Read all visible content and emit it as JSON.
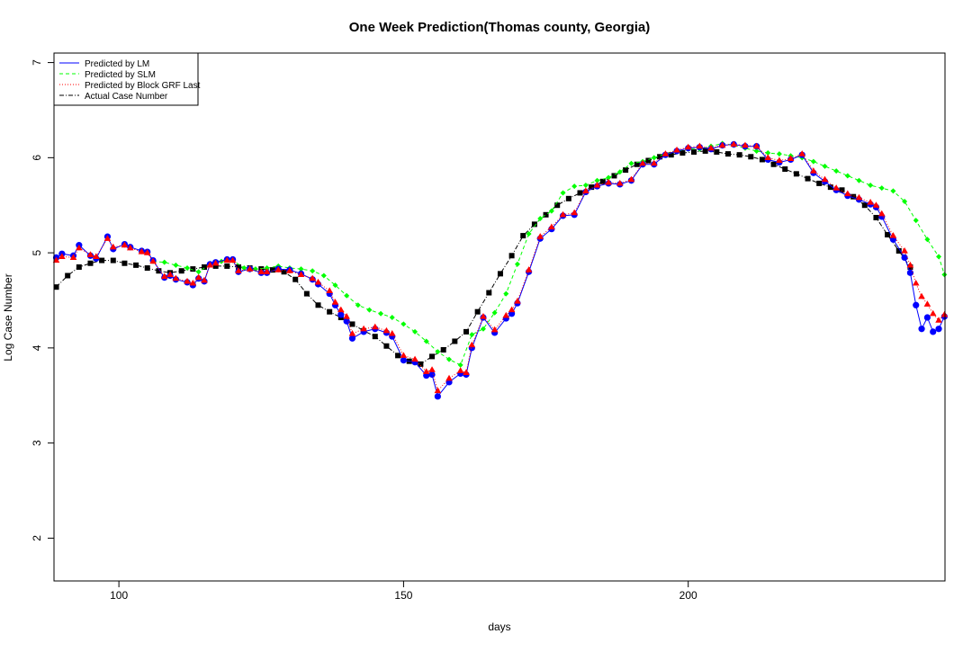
{
  "chart_data": {
    "type": "line",
    "title": "One Week Prediction(Thomas county, Georgia)",
    "xlabel": "days",
    "ylabel": "Log Case Number",
    "xlim": [
      88.6,
      245.1
    ],
    "ylim": [
      1.55,
      7.1
    ],
    "xticks": [
      100,
      150,
      200
    ],
    "yticks": [
      2,
      3,
      4,
      5,
      6,
      7
    ],
    "grid": false,
    "legend_position": "top-left",
    "legend": [
      {
        "label": "Predicted by LM",
        "color": "#0000ff",
        "style": "solid"
      },
      {
        "label": "Predicted by SLM",
        "color": "#00ff00",
        "style": "dashed"
      },
      {
        "label": "Predicted by Block GRF Last",
        "color": "#ff0000",
        "style": "dotted"
      },
      {
        "label": "Actual Case Number",
        "color": "#000000",
        "style": "dotdash"
      }
    ],
    "series": [
      {
        "name": "Actual Case Number",
        "color": "#000000",
        "marker": "square",
        "x": [
          89,
          91,
          93,
          95,
          97,
          99,
          101,
          103,
          105,
          107,
          109,
          111,
          113,
          115,
          117,
          119,
          121,
          123,
          125,
          127,
          129,
          131,
          133,
          135,
          137,
          139,
          141,
          143,
          145,
          147,
          149,
          151,
          153,
          155,
          157,
          159,
          161,
          163,
          165,
          167,
          169,
          171,
          173,
          175,
          177,
          179,
          181,
          183,
          185,
          187,
          189,
          191,
          193,
          195,
          197,
          199,
          201,
          203,
          205,
          207,
          209,
          211,
          213,
          215,
          217,
          219,
          221,
          223,
          225,
          227,
          229,
          231,
          233,
          235,
          237,
          239,
          241,
          243,
          245
        ],
        "y": [
          4.64,
          4.76,
          4.85,
          4.89,
          4.92,
          4.92,
          4.89,
          4.87,
          4.84,
          4.81,
          4.79,
          4.81,
          4.83,
          4.85,
          4.86,
          4.86,
          4.85,
          4.84,
          4.83,
          4.82,
          4.8,
          4.72,
          4.57,
          4.45,
          4.38,
          4.32,
          4.25,
          4.18,
          4.12,
          4.02,
          3.92,
          3.86,
          3.83,
          3.91,
          3.98,
          4.07,
          4.17,
          4.38,
          4.58,
          4.78,
          4.97,
          5.18,
          5.3,
          5.4,
          5.5,
          5.57,
          5.63,
          5.69,
          5.75,
          5.81,
          5.87,
          5.93,
          5.97,
          6.01,
          6.03,
          6.05,
          6.06,
          6.07,
          6.06,
          6.04,
          6.03,
          6.01,
          5.98,
          5.93,
          5.88,
          5.83,
          5.78,
          5.73,
          5.69,
          5.66,
          5.59,
          5.5,
          5.37,
          5.19,
          5.02,
          4.85,
          null,
          null,
          null
        ]
      },
      {
        "name": "Predicted by SLM",
        "color": "#00ff00",
        "marker": "diamond",
        "x": [
          106,
          108,
          110,
          112,
          114,
          116,
          118,
          120,
          122,
          124,
          126,
          128,
          130,
          132,
          134,
          136,
          138,
          140,
          142,
          144,
          146,
          148,
          150,
          152,
          154,
          156,
          158,
          160,
          162,
          164,
          166,
          168,
          170,
          172,
          174,
          176,
          178,
          180,
          182,
          184,
          186,
          188,
          190,
          192,
          194,
          196,
          198,
          200,
          202,
          204,
          206,
          208,
          210,
          212,
          214,
          216,
          218,
          220,
          222,
          224,
          226,
          228,
          230,
          232,
          234,
          236,
          238,
          240,
          242,
          244,
          245
        ],
        "y": [
          4.91,
          4.9,
          4.87,
          4.84,
          4.8,
          4.88,
          4.91,
          4.92,
          4.84,
          4.83,
          4.84,
          4.86,
          4.84,
          4.83,
          4.81,
          4.76,
          4.66,
          4.55,
          4.45,
          4.4,
          4.36,
          4.32,
          4.25,
          4.17,
          4.07,
          3.96,
          3.88,
          3.82,
          4.14,
          4.2,
          4.37,
          4.57,
          4.88,
          5.2,
          5.36,
          5.44,
          5.63,
          5.7,
          5.71,
          5.76,
          5.79,
          5.85,
          5.94,
          5.96,
          6.0,
          6.04,
          6.07,
          6.09,
          6.09,
          6.12,
          6.15,
          6.13,
          6.1,
          6.07,
          6.05,
          6.04,
          6.02,
          6.0,
          5.96,
          5.91,
          5.86,
          5.81,
          5.76,
          5.71,
          5.68,
          5.65,
          5.54,
          5.34,
          5.14,
          4.96,
          4.77
        ]
      },
      {
        "name": "Predicted by LM",
        "color": "#0000ff",
        "marker": "circle",
        "x": [
          89,
          90,
          92,
          93,
          95,
          96,
          98,
          99,
          101,
          102,
          104,
          105,
          106,
          108,
          109,
          110,
          112,
          113,
          114,
          115,
          116,
          117,
          119,
          120,
          121,
          123,
          125,
          126,
          128,
          130,
          132,
          134,
          135,
          137,
          138,
          139,
          140,
          141,
          143,
          145,
          147,
          148,
          150,
          152,
          154,
          155,
          156,
          158,
          160,
          161,
          162,
          164,
          166,
          168,
          169,
          170,
          172,
          174,
          176,
          178,
          180,
          182,
          184,
          186,
          188,
          190,
          192,
          194,
          196,
          198,
          200,
          202,
          204,
          206,
          208,
          210,
          212,
          214,
          216,
          218,
          220,
          222,
          224,
          226,
          228,
          230,
          232,
          233,
          234,
          236,
          238,
          239,
          240,
          241,
          242,
          243,
          244,
          245
        ],
        "y": [
          4.95,
          4.99,
          4.97,
          5.08,
          4.97,
          4.94,
          5.17,
          5.04,
          5.09,
          5.06,
          5.02,
          5.01,
          4.92,
          4.74,
          4.76,
          4.72,
          4.69,
          4.66,
          4.73,
          4.7,
          4.88,
          4.9,
          4.93,
          4.93,
          4.8,
          4.83,
          4.79,
          4.79,
          4.83,
          4.82,
          4.78,
          4.72,
          4.67,
          4.57,
          4.45,
          4.35,
          4.28,
          4.1,
          4.17,
          4.2,
          4.16,
          4.12,
          3.87,
          3.85,
          3.71,
          3.72,
          3.49,
          3.64,
          3.73,
          3.72,
          4.0,
          4.32,
          4.16,
          4.31,
          4.36,
          4.47,
          4.8,
          5.15,
          5.25,
          5.39,
          5.4,
          5.64,
          5.7,
          5.73,
          5.72,
          5.76,
          5.93,
          5.93,
          6.03,
          6.07,
          6.1,
          6.11,
          6.09,
          6.13,
          6.14,
          6.12,
          6.12,
          5.98,
          5.95,
          5.98,
          6.03,
          5.84,
          5.75,
          5.66,
          5.6,
          5.56,
          5.51,
          5.48,
          5.38,
          5.14,
          4.95,
          4.79,
          4.45,
          4.2,
          4.32,
          4.17,
          4.2,
          4.33
        ]
      },
      {
        "name": "Predicted by Block GRF Last",
        "color": "#ff0000",
        "marker": "triangle",
        "x": [
          89,
          90,
          92,
          93,
          95,
          96,
          98,
          99,
          101,
          102,
          104,
          105,
          106,
          108,
          109,
          110,
          112,
          113,
          114,
          115,
          116,
          117,
          119,
          120,
          121,
          123,
          125,
          126,
          128,
          130,
          132,
          134,
          135,
          137,
          138,
          139,
          140,
          141,
          143,
          145,
          147,
          148,
          150,
          152,
          154,
          155,
          156,
          158,
          160,
          161,
          162,
          164,
          166,
          168,
          169,
          170,
          172,
          174,
          176,
          178,
          180,
          182,
          184,
          186,
          188,
          190,
          192,
          194,
          196,
          198,
          200,
          202,
          204,
          206,
          208,
          210,
          212,
          214,
          216,
          218,
          220,
          222,
          224,
          226,
          228,
          230,
          232,
          233,
          234,
          236,
          238,
          239,
          240,
          241,
          242,
          243,
          244,
          245
        ],
        "y": [
          4.92,
          4.96,
          4.95,
          5.05,
          4.98,
          4.96,
          5.15,
          5.06,
          5.08,
          5.05,
          5.01,
          5.0,
          4.91,
          4.75,
          4.77,
          4.73,
          4.7,
          4.68,
          4.74,
          4.71,
          4.87,
          4.89,
          4.92,
          4.92,
          4.81,
          4.83,
          4.8,
          4.8,
          4.82,
          4.81,
          4.77,
          4.73,
          4.69,
          4.6,
          4.48,
          4.4,
          4.33,
          4.15,
          4.2,
          4.22,
          4.18,
          4.15,
          3.92,
          3.88,
          3.75,
          3.77,
          3.55,
          3.68,
          3.76,
          3.74,
          4.03,
          4.33,
          4.19,
          4.34,
          4.4,
          4.49,
          4.82,
          5.17,
          5.27,
          5.4,
          5.42,
          5.65,
          5.71,
          5.74,
          5.73,
          5.77,
          5.94,
          5.94,
          6.04,
          6.08,
          6.11,
          6.12,
          6.1,
          6.13,
          6.14,
          6.13,
          6.12,
          6.0,
          5.97,
          5.99,
          6.04,
          5.86,
          5.77,
          5.68,
          5.62,
          5.58,
          5.53,
          5.5,
          5.41,
          5.18,
          5.02,
          4.87,
          4.68,
          4.54,
          4.46,
          4.36,
          4.29,
          4.35
        ]
      }
    ]
  }
}
